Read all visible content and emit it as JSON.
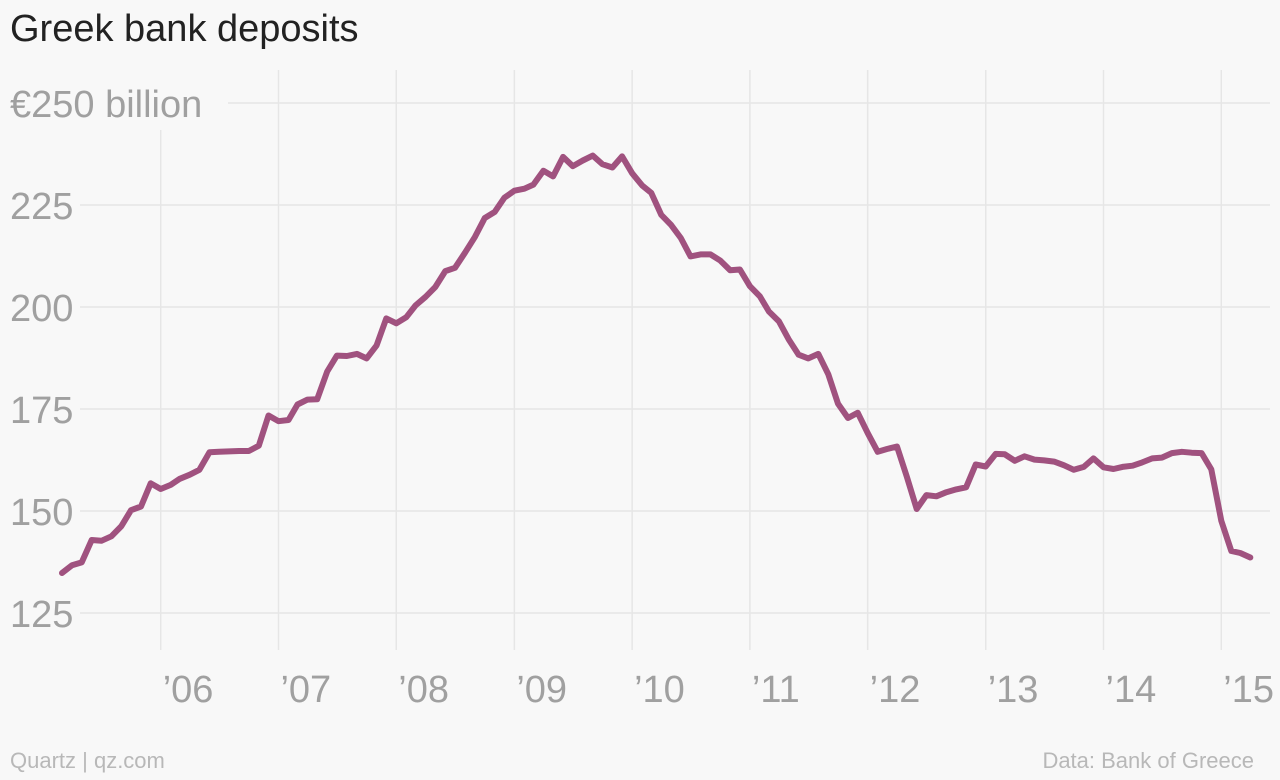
{
  "chart_data": {
    "type": "line",
    "title": "Greek bank deposits",
    "y_unit_label": "€250 billion",
    "ylim": [
      125,
      250
    ],
    "yticks": [
      {
        "value": 250,
        "label": "€250 billion"
      },
      {
        "value": 225,
        "label": "225"
      },
      {
        "value": 200,
        "label": "200"
      },
      {
        "value": 175,
        "label": "175"
      },
      {
        "value": 150,
        "label": "150"
      },
      {
        "value": 125,
        "label": "125"
      }
    ],
    "xlim": [
      "2005-03-01",
      "2015-06-01"
    ],
    "xticks": [
      {
        "value": "2006-01-01",
        "label": "’06"
      },
      {
        "value": "2007-01-01",
        "label": "’07"
      },
      {
        "value": "2008-01-01",
        "label": "’08"
      },
      {
        "value": "2009-01-01",
        "label": "’09"
      },
      {
        "value": "2010-01-01",
        "label": "’10"
      },
      {
        "value": "2011-01-01",
        "label": "’11"
      },
      {
        "value": "2012-01-01",
        "label": "’12"
      },
      {
        "value": "2013-01-01",
        "label": "’13"
      },
      {
        "value": "2014-01-01",
        "label": "’14"
      },
      {
        "value": "2015-01-01",
        "label": "’15"
      }
    ],
    "grid": true,
    "series_color": "#a0527f",
    "series": [
      {
        "name": "",
        "x": [
          "2005-03",
          "2005-04",
          "2005-05",
          "2005-06",
          "2005-07",
          "2005-08",
          "2005-09",
          "2005-10",
          "2005-11",
          "2005-12",
          "2006-01",
          "2006-02",
          "2006-03",
          "2006-04",
          "2006-05",
          "2006-06",
          "2006-07",
          "2006-08",
          "2006-09",
          "2006-10",
          "2006-11",
          "2006-12",
          "2007-01",
          "2007-02",
          "2007-03",
          "2007-04",
          "2007-05",
          "2007-06",
          "2007-07",
          "2007-08",
          "2007-09",
          "2007-10",
          "2007-11",
          "2007-12",
          "2008-01",
          "2008-02",
          "2008-03",
          "2008-04",
          "2008-05",
          "2008-06",
          "2008-07",
          "2008-08",
          "2008-09",
          "2008-10",
          "2008-11",
          "2008-12",
          "2009-01",
          "2009-02",
          "2009-03",
          "2009-04",
          "2009-05",
          "2009-06",
          "2009-07",
          "2009-08",
          "2009-09",
          "2009-10",
          "2009-11",
          "2009-12",
          "2010-01",
          "2010-02",
          "2010-03",
          "2010-04",
          "2010-05",
          "2010-06",
          "2010-07",
          "2010-08",
          "2010-09",
          "2010-10",
          "2010-11",
          "2010-12",
          "2011-01",
          "2011-02",
          "2011-03",
          "2011-04",
          "2011-05",
          "2011-06",
          "2011-07",
          "2011-08",
          "2011-09",
          "2011-10",
          "2011-11",
          "2011-12",
          "2012-01",
          "2012-02",
          "2012-03",
          "2012-04",
          "2012-05",
          "2012-06",
          "2012-07",
          "2012-08",
          "2012-09",
          "2012-10",
          "2012-11",
          "2012-12",
          "2013-01",
          "2013-02",
          "2013-03",
          "2013-04",
          "2013-05",
          "2013-06",
          "2013-07",
          "2013-08",
          "2013-09",
          "2013-10",
          "2013-11",
          "2013-12",
          "2014-01",
          "2014-02",
          "2014-03",
          "2014-04",
          "2014-05",
          "2014-06",
          "2014-07",
          "2014-08",
          "2014-09",
          "2014-10",
          "2014-11",
          "2014-12",
          "2015-01",
          "2015-02",
          "2015-03",
          "2015-04"
        ],
        "y": [
          134.8,
          136.7,
          137.4,
          142.9,
          142.7,
          143.8,
          146.3,
          150.2,
          151.1,
          156.8,
          155.4,
          156.4,
          157.9,
          158.9,
          160.1,
          164.4,
          164.5,
          164.6,
          164.7,
          164.7,
          166.0,
          173.4,
          172.0,
          172.3,
          176.1,
          177.3,
          177.4,
          184.2,
          188.1,
          188.0,
          188.5,
          187.4,
          190.6,
          197.2,
          196.0,
          197.5,
          200.4,
          202.5,
          204.9,
          208.8,
          209.6,
          213.3,
          217.2,
          221.8,
          223.3,
          226.8,
          228.5,
          229.0,
          230.0,
          233.4,
          232.0,
          236.8,
          234.5,
          235.9,
          237.1,
          235.0,
          234.2,
          236.9,
          232.8,
          229.8,
          228.0,
          222.6,
          220.2,
          216.9,
          212.4,
          212.9,
          212.9,
          211.4,
          209.0,
          209.2,
          205.1,
          202.6,
          198.9,
          196.5,
          192.1,
          188.3,
          187.4,
          188.5,
          183.5,
          176.3,
          172.8,
          174.1,
          169.1,
          164.5,
          165.2,
          165.8,
          158.5,
          150.5,
          153.9,
          153.6,
          154.6,
          155.3,
          155.8,
          161.4,
          160.9,
          164.0,
          163.9,
          162.3,
          163.4,
          162.6,
          162.4,
          162.1,
          161.2,
          160.1,
          160.8,
          162.9,
          160.7,
          160.3,
          160.8,
          161.1,
          161.9,
          162.9,
          163.1,
          164.2,
          164.5,
          164.3,
          164.2,
          160.2,
          147.6,
          140.2,
          139.7,
          138.6
        ]
      }
    ]
  },
  "footer": {
    "source_left": "Quartz | qz.com",
    "source_right": "Data: Bank of Greece"
  }
}
